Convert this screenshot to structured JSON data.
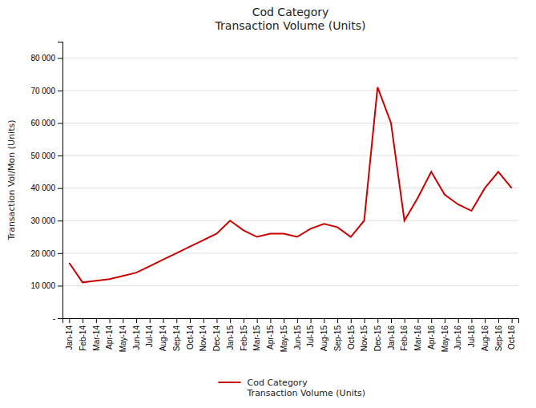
{
  "chart_data": {
    "type": "line",
    "title": "Cod Category\nTransaction Volume (Units)",
    "ylabel": "Transaction Vol/Mon (Units)",
    "categories": [
      "Jan-14",
      "Feb-14",
      "Mar-14",
      "Apr-14",
      "May-14",
      "Jun-14",
      "Jul-14",
      "Aug-14",
      "Sep-14",
      "Oct-14",
      "Nov-14",
      "Dec-14",
      "Jan-15",
      "Feb-15",
      "Mar-15",
      "Apr-15",
      "May-15",
      "Jun-15",
      "Jul-15",
      "Aug-15",
      "Sep-15",
      "Oct-15",
      "Nov-15",
      "Dec-15",
      "Jan-16",
      "Feb-16",
      "Mar-16",
      "Apr-16",
      "May-16",
      "Jun-16",
      "Jul-16",
      "Aug-16",
      "Sep-16",
      "Oct-16"
    ],
    "series": [
      {
        "name": "Cod Category\nTransaction Volume (Units)",
        "color": "#cc0000",
        "values": [
          17000,
          11000,
          11500,
          12000,
          13000,
          14000,
          16000,
          18000,
          20000,
          22000,
          24000,
          26000,
          30000,
          27000,
          25000,
          26000,
          26000,
          25000,
          27500,
          29000,
          28000,
          25000,
          30000,
          71000,
          60000,
          30000,
          37000,
          45000,
          38000,
          35000,
          33000,
          40000,
          45000,
          40000
        ]
      }
    ],
    "ylim": [
      0,
      85000
    ],
    "yticks": [
      {
        "value": 0,
        "label": "-"
      },
      {
        "value": 10000,
        "label": "10 000"
      },
      {
        "value": 20000,
        "label": "20 000"
      },
      {
        "value": 30000,
        "label": "30 000"
      },
      {
        "value": 40000,
        "label": "40 000"
      },
      {
        "value": 50000,
        "label": "50 000"
      },
      {
        "value": 60000,
        "label": "60 000"
      },
      {
        "value": 70000,
        "label": "70 000"
      },
      {
        "value": 80000,
        "label": "80 000"
      }
    ],
    "grid": true,
    "legend": "bottom"
  }
}
